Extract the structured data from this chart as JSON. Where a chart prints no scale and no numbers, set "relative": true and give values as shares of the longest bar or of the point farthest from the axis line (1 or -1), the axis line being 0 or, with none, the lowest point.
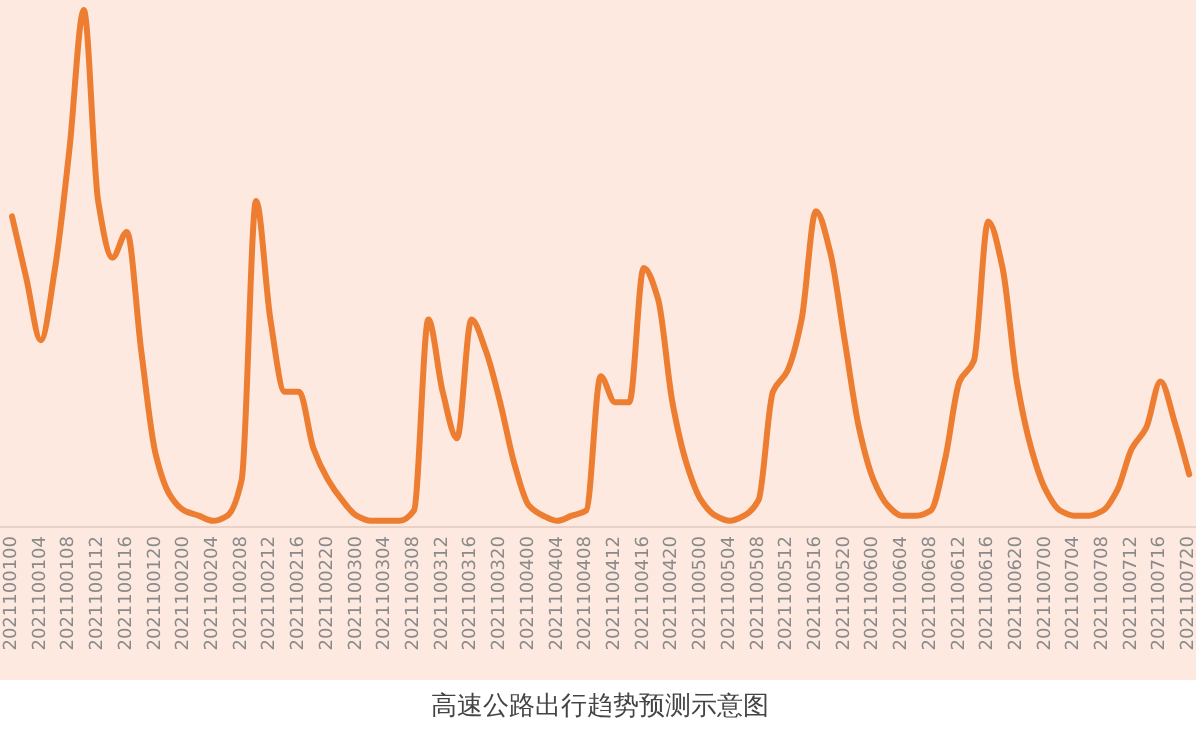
{
  "chart_data": {
    "type": "line",
    "relative": true,
    "title": "高速公路出行趋势预测示意图",
    "color": "#ed7d31",
    "line_style": "solid",
    "categories": [
      "2021100100",
      null,
      "2021100104",
      null,
      "2021100108",
      null,
      "2021100112",
      null,
      "2021100116",
      null,
      "2021100120",
      null,
      "2021100200",
      null,
      "2021100204",
      null,
      "2021100208",
      null,
      "2021100212",
      null,
      "2021100216",
      null,
      "2021100220",
      null,
      "2021100300",
      null,
      "2021100304",
      null,
      "2021100308",
      null,
      "2021100312",
      null,
      "2021100316",
      null,
      "2021100320",
      null,
      "2021100400",
      null,
      "2021100404",
      null,
      "2021100408",
      null,
      "2021100412",
      null,
      "2021100416",
      null,
      "2021100420",
      null,
      "2021100500",
      null,
      "2021100504",
      null,
      "2021100508",
      null,
      "2021100512",
      null,
      "2021100516",
      null,
      "2021100520",
      null,
      "2021100600",
      null,
      "2021100604",
      null,
      "2021100608",
      null,
      "2021100612",
      null,
      "2021100616",
      null,
      "2021100620",
      null,
      "2021100700",
      null,
      "2021100704",
      null,
      "2021100708",
      null,
      "2021100712",
      null,
      "2021100716",
      null,
      "2021100720"
    ],
    "values": [
      0.6,
      0.48,
      0.36,
      0.5,
      0.73,
      1.0,
      0.63,
      0.52,
      0.57,
      0.34,
      0.14,
      0.06,
      0.03,
      0.02,
      0.01,
      0.02,
      0.09,
      0.63,
      0.4,
      0.26,
      0.26,
      0.15,
      0.09,
      0.05,
      0.02,
      0.01,
      0.01,
      0.01,
      0.03,
      0.4,
      0.26,
      0.17,
      0.4,
      0.34,
      0.24,
      0.12,
      0.04,
      0.02,
      0.01,
      0.02,
      0.03,
      0.29,
      0.24,
      0.24,
      0.5,
      0.44,
      0.24,
      0.12,
      0.05,
      0.02,
      0.01,
      0.02,
      0.05,
      0.26,
      0.3,
      0.4,
      0.61,
      0.53,
      0.36,
      0.19,
      0.09,
      0.04,
      0.02,
      0.02,
      0.03,
      0.13,
      0.28,
      0.32,
      0.59,
      0.5,
      0.28,
      0.15,
      0.07,
      0.03,
      0.02,
      0.02,
      0.03,
      0.07,
      0.15,
      0.19,
      0.28,
      0.2,
      0.1
    ]
  }
}
